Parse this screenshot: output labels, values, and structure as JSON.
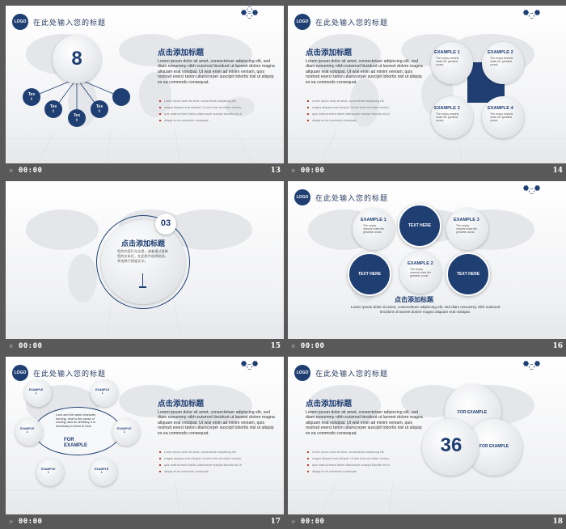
{
  "common": {
    "logo": "LOGO",
    "page_title": "在此处输入您的标题",
    "time": "00:00",
    "heading": "点击添加标题",
    "body": "Lorem ipsum dolor sit amet, consectetuer adipiscing elit, sed diam nonummy nibh euismod tincidunt ut laoreet dolore magna aliquam erat volutpat. Ut wisi enim ad minim veniam, quis nostrud exerci tation ullamcorper suscipit lobortis nisl ut aliquip ex ea commodo consequat.",
    "bullets": [
      "Lorem ipsum dolor sit amet, consectetuer adipiscing elit,",
      "magna aliquam erat volutpat. Ut wisi enim ad minim veniam,",
      "quis nostrud exerci tation ullamcorper suscipit lobortis nisl ut",
      "aliquip ex ea commodo consequat."
    ]
  },
  "slides": [
    {
      "num": "13",
      "big_number": "8",
      "nodes": [
        "Tex\nt",
        "Tex\nt",
        "Tex\nt",
        "Tex\nt"
      ]
    },
    {
      "num": "14",
      "examples": [
        "EXAMPLE 1",
        "EXAMPLE 2",
        "EXAMPLE 3",
        "EXAMPLE 4"
      ],
      "example_text": "The empty vessels make the greatest sound."
    },
    {
      "num": "15",
      "badge": "03",
      "heading": "点击添加标题",
      "text": "您的内容打在这里，或者通过复制您的文本后，在此框中选择粘贴，并选择只保留文字。"
    },
    {
      "num": "16",
      "examples": [
        "EXAMPLE 1",
        "EXAMPLE 3",
        "EXAMPLE 2"
      ],
      "text_here": [
        "TEXT HERE",
        "TEXT HERE",
        "TEXT HERE"
      ],
      "example_text": "The empty vessels make the greatest sound.",
      "heading": "点击添加标题",
      "body": "Lorem ipsum dolor sit amet, consectetuer adipiscing elit, sed diam nonummy nibh euismod tincidunt ut laoreet dolore magna aliquam erat volutpat."
    },
    {
      "num": "17",
      "small_label": "EXAMPLE\n1",
      "center_text": "Love and the same character, burning, heat is the cause of cooling; also an arbitrary, it is necessary to learn to heal.",
      "for_example": "FOR\nEXAMPLE"
    },
    {
      "num": "18",
      "big_number": "36",
      "for_example": [
        "FOR EXAMPLE",
        "FOR EXAMPLE"
      ]
    }
  ]
}
